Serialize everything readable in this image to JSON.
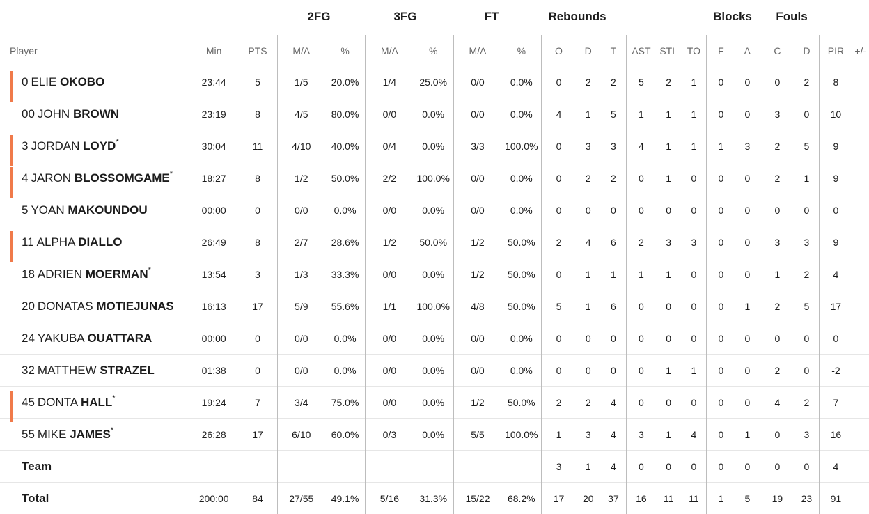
{
  "groups": {
    "fg2": "2FG",
    "fg3": "3FG",
    "ft": "FT",
    "rebounds": "Rebounds",
    "blocks": "Blocks",
    "fouls": "Fouls"
  },
  "columns": {
    "player": "Player",
    "min": "Min",
    "pts": "PTS",
    "fg2_ma": "M/A",
    "fg2_pct": "%",
    "fg3_ma": "M/A",
    "fg3_pct": "%",
    "ft_ma": "M/A",
    "ft_pct": "%",
    "reb_o": "O",
    "reb_d": "D",
    "reb_t": "T",
    "ast": "AST",
    "stl": "STL",
    "to": "TO",
    "blk_f": "F",
    "blk_a": "A",
    "foul_c": "C",
    "foul_d": "D",
    "pir": "PIR",
    "pm": "+/-"
  },
  "accent": "#f07a4a",
  "players": [
    {
      "num": "0",
      "first": "ELIE",
      "last": "OKOBO",
      "star": "",
      "starter": true,
      "min": "23:44",
      "pts": "5",
      "fg2": "1/5",
      "fg2p": "20.0%",
      "fg3": "1/4",
      "fg3p": "25.0%",
      "ft": "0/0",
      "ftp": "0.0%",
      "o": "0",
      "d": "2",
      "t": "2",
      "ast": "5",
      "stl": "2",
      "to": "1",
      "bf": "0",
      "ba": "0",
      "fc": "0",
      "fd": "2",
      "pir": "8"
    },
    {
      "num": "00",
      "first": "JOHN",
      "last": "BROWN",
      "star": "",
      "starter": false,
      "min": "23:19",
      "pts": "8",
      "fg2": "4/5",
      "fg2p": "80.0%",
      "fg3": "0/0",
      "fg3p": "0.0%",
      "ft": "0/0",
      "ftp": "0.0%",
      "o": "4",
      "d": "1",
      "t": "5",
      "ast": "1",
      "stl": "1",
      "to": "1",
      "bf": "0",
      "ba": "0",
      "fc": "3",
      "fd": "0",
      "pir": "10"
    },
    {
      "num": "3",
      "first": "JORDAN",
      "last": "LOYD",
      "star": "*",
      "starter": true,
      "min": "30:04",
      "pts": "11",
      "fg2": "4/10",
      "fg2p": "40.0%",
      "fg3": "0/4",
      "fg3p": "0.0%",
      "ft": "3/3",
      "ftp": "100.0%",
      "o": "0",
      "d": "3",
      "t": "3",
      "ast": "4",
      "stl": "1",
      "to": "1",
      "bf": "1",
      "ba": "3",
      "fc": "2",
      "fd": "5",
      "pir": "9"
    },
    {
      "num": "4",
      "first": "JARON",
      "last": "BLOSSOMGAME",
      "star": "*",
      "starter": true,
      "min": "18:27",
      "pts": "8",
      "fg2": "1/2",
      "fg2p": "50.0%",
      "fg3": "2/2",
      "fg3p": "100.0%",
      "ft": "0/0",
      "ftp": "0.0%",
      "o": "0",
      "d": "2",
      "t": "2",
      "ast": "0",
      "stl": "1",
      "to": "0",
      "bf": "0",
      "ba": "0",
      "fc": "2",
      "fd": "1",
      "pir": "9"
    },
    {
      "num": "5",
      "first": "YOAN",
      "last": "MAKOUNDOU",
      "star": "",
      "starter": false,
      "min": "00:00",
      "pts": "0",
      "fg2": "0/0",
      "fg2p": "0.0%",
      "fg3": "0/0",
      "fg3p": "0.0%",
      "ft": "0/0",
      "ftp": "0.0%",
      "o": "0",
      "d": "0",
      "t": "0",
      "ast": "0",
      "stl": "0",
      "to": "0",
      "bf": "0",
      "ba": "0",
      "fc": "0",
      "fd": "0",
      "pir": "0"
    },
    {
      "num": "11",
      "first": "ALPHA",
      "last": "DIALLO",
      "star": "",
      "starter": true,
      "min": "26:49",
      "pts": "8",
      "fg2": "2/7",
      "fg2p": "28.6%",
      "fg3": "1/2",
      "fg3p": "50.0%",
      "ft": "1/2",
      "ftp": "50.0%",
      "o": "2",
      "d": "4",
      "t": "6",
      "ast": "2",
      "stl": "3",
      "to": "3",
      "bf": "0",
      "ba": "0",
      "fc": "3",
      "fd": "3",
      "pir": "9"
    },
    {
      "num": "18",
      "first": "ADRIEN",
      "last": "MOERMAN",
      "star": "*",
      "starter": false,
      "min": "13:54",
      "pts": "3",
      "fg2": "1/3",
      "fg2p": "33.3%",
      "fg3": "0/0",
      "fg3p": "0.0%",
      "ft": "1/2",
      "ftp": "50.0%",
      "o": "0",
      "d": "1",
      "t": "1",
      "ast": "1",
      "stl": "1",
      "to": "0",
      "bf": "0",
      "ba": "0",
      "fc": "1",
      "fd": "2",
      "pir": "4"
    },
    {
      "num": "20",
      "first": "DONATAS",
      "last": "MOTIEJUNAS",
      "star": "",
      "starter": false,
      "min": "16:13",
      "pts": "17",
      "fg2": "5/9",
      "fg2p": "55.6%",
      "fg3": "1/1",
      "fg3p": "100.0%",
      "ft": "4/8",
      "ftp": "50.0%",
      "o": "5",
      "d": "1",
      "t": "6",
      "ast": "0",
      "stl": "0",
      "to": "0",
      "bf": "0",
      "ba": "1",
      "fc": "2",
      "fd": "5",
      "pir": "17"
    },
    {
      "num": "24",
      "first": "YAKUBA",
      "last": "OUATTARA",
      "star": "",
      "starter": false,
      "min": "00:00",
      "pts": "0",
      "fg2": "0/0",
      "fg2p": "0.0%",
      "fg3": "0/0",
      "fg3p": "0.0%",
      "ft": "0/0",
      "ftp": "0.0%",
      "o": "0",
      "d": "0",
      "t": "0",
      "ast": "0",
      "stl": "0",
      "to": "0",
      "bf": "0",
      "ba": "0",
      "fc": "0",
      "fd": "0",
      "pir": "0"
    },
    {
      "num": "32",
      "first": "MATTHEW",
      "last": "STRAZEL",
      "star": "",
      "starter": false,
      "min": "01:38",
      "pts": "0",
      "fg2": "0/0",
      "fg2p": "0.0%",
      "fg3": "0/0",
      "fg3p": "0.0%",
      "ft": "0/0",
      "ftp": "0.0%",
      "o": "0",
      "d": "0",
      "t": "0",
      "ast": "0",
      "stl": "1",
      "to": "1",
      "bf": "0",
      "ba": "0",
      "fc": "2",
      "fd": "0",
      "pir": "-2"
    },
    {
      "num": "45",
      "first": "DONTA",
      "last": "HALL",
      "star": "*",
      "starter": true,
      "min": "19:24",
      "pts": "7",
      "fg2": "3/4",
      "fg2p": "75.0%",
      "fg3": "0/0",
      "fg3p": "0.0%",
      "ft": "1/2",
      "ftp": "50.0%",
      "o": "2",
      "d": "2",
      "t": "4",
      "ast": "0",
      "stl": "0",
      "to": "0",
      "bf": "0",
      "ba": "0",
      "fc": "4",
      "fd": "2",
      "pir": "7"
    },
    {
      "num": "55",
      "first": "MIKE",
      "last": "JAMES",
      "star": "*",
      "starter": false,
      "min": "26:28",
      "pts": "17",
      "fg2": "6/10",
      "fg2p": "60.0%",
      "fg3": "0/3",
      "fg3p": "0.0%",
      "ft": "5/5",
      "ftp": "100.0%",
      "o": "1",
      "d": "3",
      "t": "4",
      "ast": "3",
      "stl": "1",
      "to": "4",
      "bf": "0",
      "ba": "1",
      "fc": "0",
      "fd": "3",
      "pir": "16"
    }
  ],
  "team": {
    "label": "Team",
    "o": "3",
    "d": "1",
    "t": "4",
    "ast": "0",
    "stl": "0",
    "to": "0",
    "bf": "0",
    "ba": "0",
    "fc": "0",
    "fd": "0",
    "pir": "4"
  },
  "total": {
    "label": "Total",
    "min": "200:00",
    "pts": "84",
    "fg2": "27/55",
    "fg2p": "49.1%",
    "fg3": "5/16",
    "fg3p": "31.3%",
    "ft": "15/22",
    "ftp": "68.2%",
    "o": "17",
    "d": "20",
    "t": "37",
    "ast": "16",
    "stl": "11",
    "to": "11",
    "bf": "1",
    "ba": "5",
    "fc": "19",
    "fd": "23",
    "pir": "91"
  }
}
